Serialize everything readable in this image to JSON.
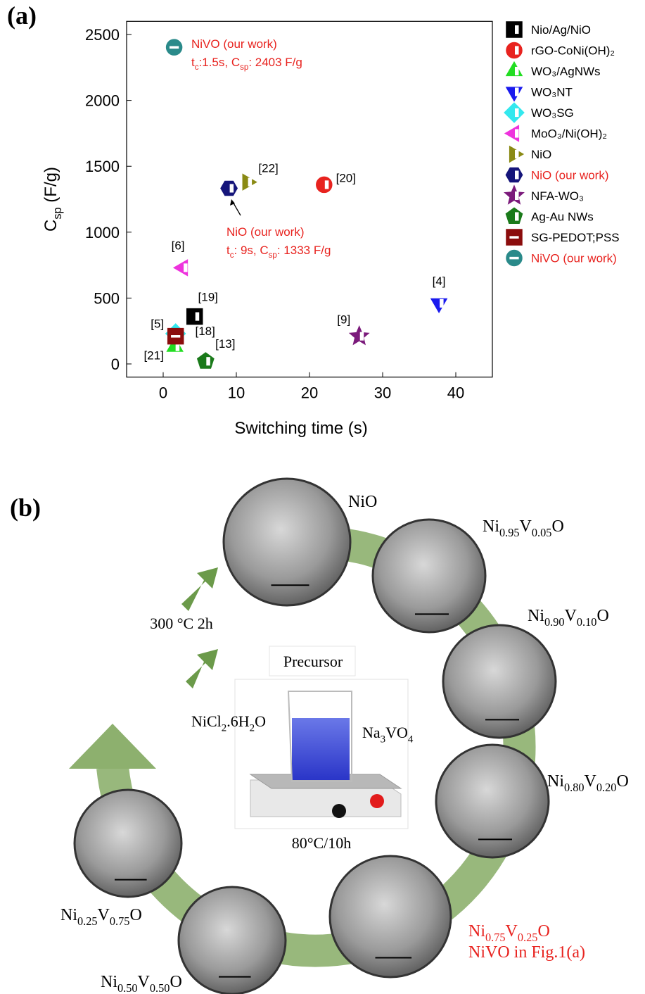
{
  "panel_a_label": "(a)",
  "chart_data": {
    "type": "scatter",
    "x_label": "Switching time (s)",
    "y_label": [
      "C",
      {
        "sub": "sp"
      },
      " (F/g)"
    ],
    "xlim": [
      -5,
      45
    ],
    "xticks": [
      0,
      10,
      20,
      30,
      40
    ],
    "ylim": [
      -100,
      2600
    ],
    "yticks": [
      0,
      500,
      1000,
      1500,
      2000,
      2500
    ],
    "legend": "outside-right",
    "series": [
      {
        "name": "Nio/Ag/NiO",
        "color": "#000000",
        "marker": "square",
        "hollow": "right",
        "ref": "[19]",
        "x": [
          4.3
        ],
        "values": [
          360
        ]
      },
      {
        "name": "rGO-CoNi(OH)₂",
        "color": "#e8231f",
        "marker": "circle",
        "hollow": "right",
        "ref": "[20]",
        "x": [
          22
        ],
        "values": [
          1360
        ]
      },
      {
        "name": "WO₃/AgNWs",
        "color": "#22dd22",
        "marker": "triangle-up",
        "hollow": "right",
        "ref": "[21]",
        "x": [
          1.6
        ],
        "values": [
          130
        ]
      },
      {
        "name": "WO₃NT",
        "color": "#1a1aee",
        "marker": "triangle-down",
        "hollow": "right",
        "ref": "[4]",
        "x": [
          37.7
        ],
        "values": [
          460
        ]
      },
      {
        "name": "WO₃SG",
        "color": "#33e8ee",
        "marker": "diamond",
        "hollow": "right",
        "ref": "[18]",
        "x": [
          1.7
        ],
        "values": [
          230
        ]
      },
      {
        "name": "MoO₃/Ni(OH)₂",
        "color": "#ee33dd",
        "marker": "triangle-left",
        "hollow": "right",
        "ref": "[6]",
        "x": [
          2.7
        ],
        "values": [
          730
        ]
      },
      {
        "name": "NiO",
        "color": "#8a8a14",
        "marker": "triangle-right",
        "hollow": "right",
        "ref": "[22]",
        "x": [
          11.5
        ],
        "values": [
          1380
        ]
      },
      {
        "name": "NiO (our work)",
        "color": "#15157a",
        "label_color": "#e8231f",
        "marker": "hexagon",
        "hollow": "right",
        "x": [
          9
        ],
        "values": [
          1333
        ]
      },
      {
        "name": "NFA-WO₃",
        "color": "#7b1a7b",
        "marker": "star",
        "hollow": "right",
        "ref": "[9]",
        "x": [
          26.8
        ],
        "values": [
          210
        ]
      },
      {
        "name": "Ag-Au NWs",
        "color": "#1a7a1a",
        "marker": "pentagon",
        "hollow": "right",
        "ref": "[13]",
        "x": [
          5.8
        ],
        "values": [
          20
        ]
      },
      {
        "name": "SG-PEDOT;PSS",
        "color": "#8b0d0d",
        "marker": "square",
        "hollow": "band",
        "ref": "[5]",
        "x": [
          1.7
        ],
        "values": [
          210
        ]
      },
      {
        "name": "NiVO (our work)",
        "color": "#2a8a8a",
        "label_color": "#e8231f",
        "marker": "circle",
        "hollow": "band",
        "x": [
          1.5
        ],
        "values": [
          2403
        ]
      }
    ],
    "annotations": [
      {
        "color": "#e8231f",
        "lines": [
          [
            "NiVO (our work)"
          ],
          [
            "t",
            {
              "sub": "c"
            },
            ":1.5s, C",
            {
              "sub": "sp"
            },
            ": 2403 F/g"
          ]
        ]
      },
      {
        "color": "#e8231f",
        "lines": [
          [
            "NiO (our work)"
          ],
          [
            "t",
            {
              "sub": "c"
            },
            ": 9s, C",
            {
              "sub": "sp"
            },
            ": 1333 F/g"
          ]
        ]
      }
    ]
  },
  "diagram": {
    "label": "(b)",
    "step": "300 °C 2h",
    "precursor": "Precursor",
    "reagent_left": [
      "NiCl",
      {
        "sub": "2"
      },
      ".6H",
      {
        "sub": "2"
      },
      "O"
    ],
    "reagent_right": [
      "Na",
      {
        "sub": "3"
      },
      "VO",
      {
        "sub": "4"
      }
    ],
    "condition": "80°C/10h",
    "samples": [
      {
        "formula": [
          "NiO"
        ]
      },
      {
        "formula": [
          "Ni",
          {
            "sub": "0.95"
          },
          "V",
          {
            "sub": "0.05"
          },
          "O"
        ]
      },
      {
        "formula": [
          "Ni",
          {
            "sub": "0.90"
          },
          "V",
          {
            "sub": "0.10"
          },
          "O"
        ]
      },
      {
        "formula": [
          "Ni",
          {
            "sub": "0.80"
          },
          "V",
          {
            "sub": "0.20"
          },
          "O"
        ]
      },
      {
        "formula": [
          "Ni",
          {
            "sub": "0.75"
          },
          "V",
          {
            "sub": "0.25"
          },
          "O"
        ],
        "color": "#e8231f",
        "note": "NiVO in Fig.1(a)"
      },
      {
        "formula": [
          "Ni",
          {
            "sub": "0.50"
          },
          "V",
          {
            "sub": "0.50"
          },
          "O"
        ]
      },
      {
        "formula": [
          "Ni",
          {
            "sub": "0.25"
          },
          "V",
          {
            "sub": "0.75"
          },
          "O"
        ]
      }
    ]
  }
}
